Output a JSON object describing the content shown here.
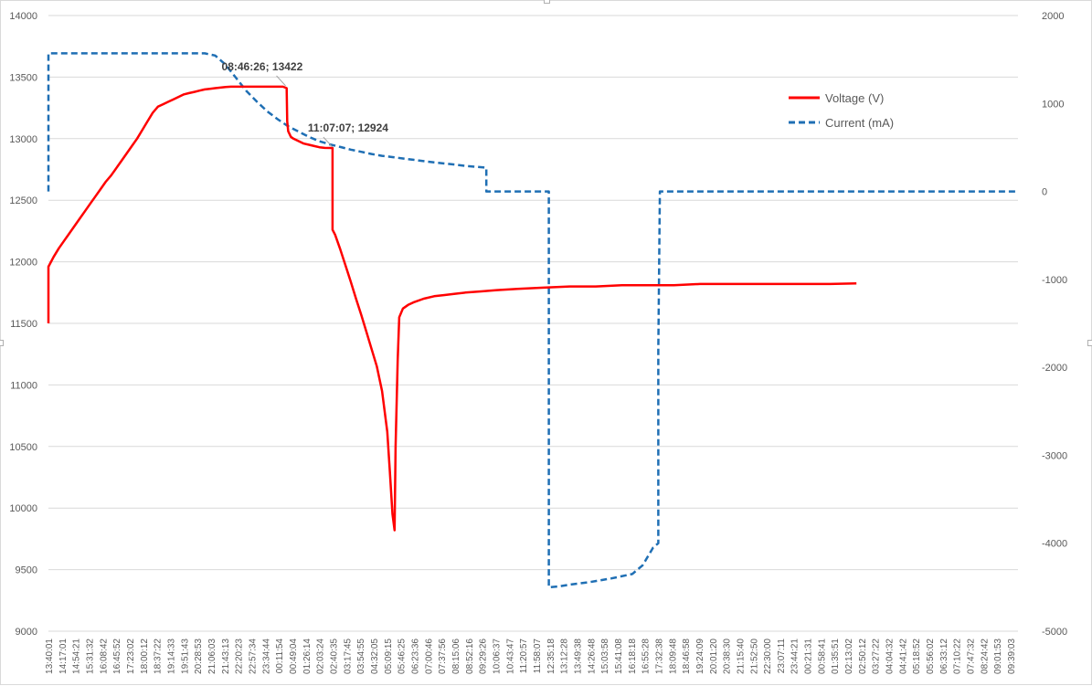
{
  "chart_data": {
    "type": "line",
    "title": "",
    "xlabel": "",
    "ylabel": "",
    "y2label": "",
    "ylim": [
      9000,
      14000
    ],
    "y2lim": [
      -5000,
      2000
    ],
    "yticks": [
      9000,
      9500,
      10000,
      10500,
      11000,
      11500,
      12000,
      12500,
      13000,
      13500,
      14000
    ],
    "y2ticks": [
      -5000,
      -4000,
      -3000,
      -2000,
      -1000,
      0,
      1000,
      2000
    ],
    "grid": true,
    "legend_position": "top-right",
    "x_tick_labels": [
      "13:40:01",
      "14:17:01",
      "14:54:21",
      "15:31:32",
      "16:08:42",
      "16:45:52",
      "17:23:02",
      "18:00:12",
      "18:37:22",
      "19:14:33",
      "19:51:43",
      "20:28:53",
      "21:06:03",
      "21:43:13",
      "22:20:23",
      "22:57:34",
      "23:34:44",
      "00:11:54",
      "00:49:04",
      "01:26:14",
      "02:03:24",
      "02:40:35",
      "03:17:45",
      "03:54:55",
      "04:32:05",
      "05:09:15",
      "05:46:25",
      "06:23:36",
      "07:00:46",
      "07:37:56",
      "08:15:06",
      "08:52:16",
      "09:29:26",
      "10:06:37",
      "10:43:47",
      "11:20:57",
      "11:58:07",
      "12:35:18",
      "13:12:28",
      "13:49:38",
      "14:26:48",
      "15:03:58",
      "15:41:08",
      "16:18:18",
      "16:55:28",
      "17:32:38",
      "18:09:48",
      "18:46:58",
      "19:24:09",
      "20:01:20",
      "20:38:30",
      "21:15:40",
      "21:52:50",
      "22:30:00",
      "23:07:11",
      "23:44:21",
      "00:21:31",
      "00:58:41",
      "01:35:51",
      "02:13:02",
      "02:50:12",
      "03:27:22",
      "04:04:32",
      "04:41:42",
      "05:18:52",
      "05:56:02",
      "06:33:12",
      "07:10:22",
      "07:47:32",
      "08:24:42",
      "09:01:53",
      "09:39:03"
    ],
    "series": [
      {
        "name": "Voltage (V)",
        "axis": "left",
        "color": "#ff0000",
        "dash": "solid",
        "points": [
          [
            0,
            11500
          ],
          [
            0,
            11960
          ],
          [
            1,
            12040
          ],
          [
            2,
            12110
          ],
          [
            3,
            12170
          ],
          [
            4,
            12230
          ],
          [
            5,
            12290
          ],
          [
            6,
            12350
          ],
          [
            7,
            12410
          ],
          [
            8,
            12470
          ],
          [
            9,
            12530
          ],
          [
            10,
            12590
          ],
          [
            11,
            12650
          ],
          [
            12,
            12700
          ],
          [
            13,
            12760
          ],
          [
            14,
            12820
          ],
          [
            15,
            12880
          ],
          [
            16,
            12940
          ],
          [
            17,
            13000
          ],
          [
            18,
            13070
          ],
          [
            19,
            13140
          ],
          [
            20,
            13210
          ],
          [
            21,
            13260
          ],
          [
            22,
            13280
          ],
          [
            23,
            13300
          ],
          [
            24,
            13320
          ],
          [
            25,
            13340
          ],
          [
            26,
            13360
          ],
          [
            27,
            13370
          ],
          [
            28,
            13380
          ],
          [
            29,
            13390
          ],
          [
            30,
            13400
          ],
          [
            31,
            13405
          ],
          [
            32,
            13410
          ],
          [
            33,
            13415
          ],
          [
            34,
            13420
          ],
          [
            35,
            13422
          ],
          [
            40,
            13422
          ],
          [
            45,
            13422
          ],
          [
            45.7,
            13410
          ],
          [
            45.8,
            13140
          ],
          [
            46,
            13060
          ],
          [
            46.5,
            13015
          ],
          [
            47,
            13000
          ],
          [
            48,
            12980
          ],
          [
            49,
            12960
          ],
          [
            50,
            12950
          ],
          [
            51,
            12940
          ],
          [
            52,
            12930
          ],
          [
            53,
            12925
          ],
          [
            54.4,
            12924
          ],
          [
            54.5,
            12924
          ],
          [
            54.5,
            12260
          ],
          [
            55,
            12220
          ],
          [
            56,
            12100
          ],
          [
            57,
            11970
          ],
          [
            58,
            11840
          ],
          [
            59,
            11700
          ],
          [
            60,
            11570
          ],
          [
            61,
            11430
          ],
          [
            62,
            11290
          ],
          [
            63,
            11150
          ],
          [
            64,
            10950
          ],
          [
            65,
            10620
          ],
          [
            65.5,
            10300
          ],
          [
            66,
            9950
          ],
          [
            66.4,
            9820
          ],
          [
            66.6,
            10500
          ],
          [
            67,
            11200
          ],
          [
            67.3,
            11550
          ],
          [
            68,
            11620
          ],
          [
            69,
            11650
          ],
          [
            70,
            11670
          ],
          [
            72,
            11700
          ],
          [
            74,
            11720
          ],
          [
            76,
            11730
          ],
          [
            78,
            11740
          ],
          [
            80,
            11750
          ],
          [
            83,
            11760
          ],
          [
            86,
            11770
          ],
          [
            90,
            11780
          ],
          [
            95,
            11790
          ],
          [
            100,
            11800
          ],
          [
            105,
            11800
          ],
          [
            110,
            11810
          ],
          [
            115,
            11810
          ],
          [
            120,
            11810
          ],
          [
            125,
            11820
          ],
          [
            130,
            11820
          ],
          [
            135,
            11820
          ],
          [
            140,
            11820
          ],
          [
            145,
            11820
          ],
          [
            150,
            11820
          ],
          [
            155,
            11825
          ]
        ]
      },
      {
        "name": "Current (mA)",
        "axis": "right",
        "color": "#1f6fb4",
        "dash": "dashed",
        "points": [
          [
            0,
            0
          ],
          [
            0,
            1570
          ],
          [
            10,
            1570
          ],
          [
            20,
            1570
          ],
          [
            30,
            1570
          ],
          [
            32,
            1545
          ],
          [
            34,
            1440
          ],
          [
            36,
            1290
          ],
          [
            38,
            1140
          ],
          [
            40,
            1020
          ],
          [
            42,
            910
          ],
          [
            44,
            820
          ],
          [
            46,
            740
          ],
          [
            48,
            680
          ],
          [
            50,
            620
          ],
          [
            52,
            570
          ],
          [
            54,
            535
          ],
          [
            56,
            505
          ],
          [
            58,
            475
          ],
          [
            60,
            450
          ],
          [
            62,
            425
          ],
          [
            64,
            405
          ],
          [
            66,
            390
          ],
          [
            68,
            375
          ],
          [
            70,
            360
          ],
          [
            72,
            345
          ],
          [
            74,
            330
          ],
          [
            76,
            318
          ],
          [
            78,
            305
          ],
          [
            80,
            290
          ],
          [
            82,
            280
          ],
          [
            84,
            270
          ],
          [
            84,
            130
          ],
          [
            84,
            0
          ],
          [
            86,
            0
          ],
          [
            90,
            0
          ],
          [
            94,
            0
          ],
          [
            96,
            0
          ],
          [
            96,
            -4500
          ],
          [
            98,
            -4490
          ],
          [
            100,
            -4470
          ],
          [
            104,
            -4440
          ],
          [
            108,
            -4400
          ],
          [
            112,
            -4350
          ],
          [
            114,
            -4250
          ],
          [
            116,
            -4050
          ],
          [
            117,
            -4000
          ],
          [
            117,
            -4000
          ],
          [
            117,
            -1800
          ],
          [
            117.3,
            0
          ],
          [
            120,
            0
          ],
          [
            130,
            0
          ],
          [
            150,
            0
          ],
          [
            170,
            0
          ],
          [
            180,
            0
          ],
          [
            186,
            0
          ]
        ]
      }
    ],
    "annotations": [
      {
        "label": "08:46:26;  13422",
        "x": 45.5,
        "y": 13422,
        "axis": "left"
      },
      {
        "label": "11:07:07;  12924",
        "x": 54.5,
        "y": 12924,
        "axis": "left"
      }
    ],
    "legend": [
      {
        "label": "Voltage (V)",
        "color": "#ff0000",
        "dash": "solid"
      },
      {
        "label": "Current (mA)",
        "color": "#1f6fb4",
        "dash": "dashed"
      }
    ]
  }
}
